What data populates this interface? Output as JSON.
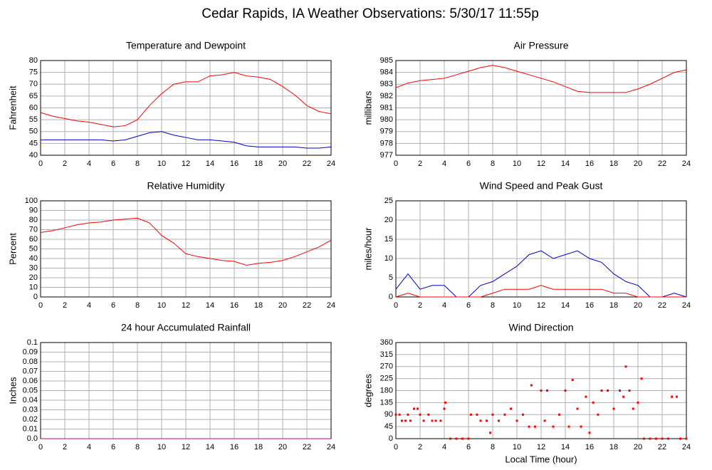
{
  "title": "Cedar Rapids, IA Weather Observations: 5/30/17 11:55p",
  "chart_data": [
    {
      "type": "line",
      "title": "Temperature and Dewpoint",
      "ylabel": "Fahrenheit",
      "x": [
        0,
        1,
        2,
        3,
        4,
        5,
        6,
        7,
        8,
        9,
        10,
        11,
        12,
        13,
        14,
        15,
        16,
        17,
        18,
        19,
        20,
        21,
        22,
        23,
        24
      ],
      "series": [
        {
          "color": "#ff0000",
          "values": [
            58,
            56.5,
            55.5,
            54.5,
            54,
            53,
            52,
            52.5,
            55,
            61,
            66,
            70,
            71,
            71,
            73.5,
            74,
            75,
            73.5,
            73,
            72,
            69,
            65.5,
            61,
            58.5,
            57.5
          ]
        },
        {
          "color": "#0000cc",
          "values": [
            46.5,
            46.5,
            46.5,
            46.5,
            46.5,
            46.5,
            46,
            46.5,
            48,
            49.5,
            50,
            48.5,
            47.5,
            46.5,
            46.5,
            46,
            45.5,
            44,
            43.5,
            43.5,
            43.5,
            43.5,
            43,
            43,
            43.5
          ]
        }
      ],
      "xlim": [
        0,
        24
      ],
      "xticks": [
        0,
        2,
        4,
        6,
        8,
        10,
        12,
        14,
        16,
        18,
        20,
        22,
        24
      ],
      "ylim": [
        40,
        80
      ],
      "yticks": [
        40,
        45,
        50,
        55,
        60,
        65,
        70,
        75,
        80
      ],
      "grid": true
    },
    {
      "type": "line",
      "title": "Air Pressure",
      "ylabel": "millibars",
      "x": [
        0,
        1,
        2,
        3,
        4,
        5,
        6,
        7,
        8,
        9,
        10,
        11,
        12,
        13,
        14,
        15,
        16,
        17,
        18,
        19,
        20,
        21,
        22,
        23,
        24
      ],
      "series": [
        {
          "color": "#ff0000",
          "values": [
            982.7,
            983.1,
            983.3,
            983.4,
            983.5,
            983.8,
            984.1,
            984.4,
            984.6,
            984.4,
            984.1,
            983.8,
            983.5,
            983.2,
            982.8,
            982.4,
            982.3,
            982.3,
            982.3,
            982.3,
            982.6,
            983,
            983.5,
            984,
            984.2
          ]
        }
      ],
      "xlim": [
        0,
        24
      ],
      "xticks": [
        0,
        2,
        4,
        6,
        8,
        10,
        12,
        14,
        16,
        18,
        20,
        22,
        24
      ],
      "ylim": [
        977,
        985
      ],
      "yticks": [
        977,
        978,
        979,
        980,
        981,
        982,
        983,
        984,
        985
      ],
      "grid": true
    },
    {
      "type": "line",
      "title": "Relative Humidity",
      "ylabel": "Percent",
      "x": [
        0,
        1,
        2,
        3,
        4,
        5,
        6,
        7,
        8,
        9,
        10,
        11,
        12,
        13,
        14,
        15,
        16,
        17,
        18,
        19,
        20,
        21,
        22,
        23,
        24
      ],
      "series": [
        {
          "color": "#ff0000",
          "values": [
            67,
            69,
            72,
            75,
            77,
            78,
            80,
            81,
            82,
            77,
            64,
            56,
            45,
            42,
            40,
            38,
            37,
            33,
            35,
            36,
            38,
            42,
            47,
            52,
            59
          ]
        }
      ],
      "xlim": [
        0,
        24
      ],
      "xticks": [
        0,
        2,
        4,
        6,
        8,
        10,
        12,
        14,
        16,
        18,
        20,
        22,
        24
      ],
      "ylim": [
        0,
        100
      ],
      "yticks": [
        0,
        10,
        20,
        30,
        40,
        50,
        60,
        70,
        80,
        90,
        100
      ],
      "grid": true
    },
    {
      "type": "line",
      "title": "Wind Speed and Peak Gust",
      "ylabel": "miles/hour",
      "x": [
        0,
        1,
        2,
        3,
        4,
        5,
        6,
        7,
        8,
        9,
        10,
        11,
        12,
        13,
        14,
        15,
        16,
        17,
        18,
        19,
        20,
        21,
        22,
        23,
        24
      ],
      "series": [
        {
          "color": "#0000cc",
          "values": [
            2,
            6,
            2,
            3,
            3,
            0,
            0,
            3,
            4,
            6,
            8,
            11,
            12,
            10,
            11,
            12,
            10,
            9,
            6,
            4,
            3,
            0,
            0,
            1,
            0
          ]
        },
        {
          "color": "#ff0000",
          "values": [
            0,
            1,
            0,
            0,
            0,
            0,
            0,
            0,
            1,
            2,
            2,
            2,
            3,
            2,
            2,
            2,
            2,
            2,
            1,
            1,
            0,
            0,
            0,
            0,
            0
          ]
        }
      ],
      "xlim": [
        0,
        24
      ],
      "xticks": [
        0,
        2,
        4,
        6,
        8,
        10,
        12,
        14,
        16,
        18,
        20,
        22,
        24
      ],
      "ylim": [
        0,
        25
      ],
      "yticks": [
        0,
        5,
        10,
        15,
        20,
        25
      ],
      "grid": true
    },
    {
      "type": "line",
      "title": "24 hour Accumulated Rainfall",
      "ylabel": "Inches",
      "x": [
        0,
        24
      ],
      "series": [
        {
          "color": "#cc0066",
          "values": [
            0,
            0
          ]
        }
      ],
      "xlim": [
        0,
        24
      ],
      "xticks": [
        0,
        2,
        4,
        6,
        8,
        10,
        12,
        14,
        16,
        18,
        20,
        22,
        24
      ],
      "ylim": [
        0,
        0.1
      ],
      "yticks": [
        {
          "value": 0,
          "label": "0.0"
        },
        0.01,
        0.02,
        0.03,
        0.04,
        0.05,
        0.06,
        0.07,
        0.08,
        0.09,
        0.1
      ],
      "grid": true
    },
    {
      "type": "scatter",
      "title": "Wind Direction",
      "ylabel": "degrees",
      "xlabel": "Local Time (hour)",
      "x": [
        0,
        0.3,
        0.5,
        0.8,
        1,
        1.2,
        1.5,
        1.8,
        2,
        2.3,
        2.7,
        3,
        3.3,
        3.7,
        4,
        4.1,
        4.5,
        5,
        5.5,
        6,
        6.2,
        6.7,
        7,
        7.5,
        7.8,
        8,
        8.5,
        9,
        9.5,
        10,
        10.5,
        11,
        11.2,
        11.5,
        12,
        12.3,
        12.5,
        13,
        13.5,
        14,
        14.3,
        14.6,
        15,
        15.3,
        15.7,
        16,
        16.3,
        16.7,
        17,
        17.5,
        18,
        18.5,
        18.8,
        19,
        19.3,
        19.6,
        20,
        20.3,
        20.5,
        21,
        21.5,
        22,
        22.5,
        22.8,
        23.2,
        23.5,
        24
      ],
      "series": [
        {
          "color": "#ff0000",
          "values": [
            90,
            90,
            67,
            67,
            90,
            67,
            112,
            112,
            90,
            67,
            90,
            67,
            67,
            67,
            112,
            135,
            0,
            0,
            0,
            0,
            90,
            90,
            67,
            67,
            22,
            90,
            67,
            90,
            112,
            67,
            90,
            45,
            200,
            45,
            180,
            67,
            180,
            45,
            90,
            180,
            45,
            220,
            112,
            45,
            157,
            22,
            135,
            90,
            180,
            180,
            112,
            180,
            157,
            270,
            180,
            112,
            135,
            225,
            0,
            0,
            0,
            0,
            0,
            157,
            157,
            0,
            0
          ]
        }
      ],
      "xlim": [
        0,
        24
      ],
      "xticks": [
        0,
        2,
        4,
        6,
        8,
        10,
        12,
        14,
        16,
        18,
        20,
        22,
        24
      ],
      "ylim": [
        0,
        360
      ],
      "yticks": [
        0,
        45,
        90,
        135,
        180,
        225,
        270,
        315,
        360
      ],
      "grid": true
    }
  ]
}
